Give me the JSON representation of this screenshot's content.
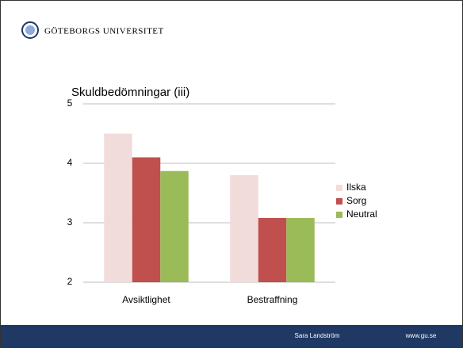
{
  "header": {
    "title": "GÖTEBORGS UNIVERSITET"
  },
  "footer": {
    "author": "Sara Landström",
    "url": "www.gu.se"
  },
  "chart_data": {
    "type": "bar",
    "title": "Skuldbedömningar (iii)",
    "categories": [
      "Avsiktlighet",
      "Bestraffning"
    ],
    "series": [
      {
        "name": "Ilska",
        "color": "#f2dcdb",
        "values": [
          4.5,
          3.8
        ]
      },
      {
        "name": "Sorg",
        "color": "#c0504d",
        "values": [
          4.1,
          3.08
        ]
      },
      {
        "name": "Neutral",
        "color": "#9bbb59",
        "values": [
          3.87,
          3.08
        ]
      }
    ],
    "ylim": [
      2,
      5
    ],
    "yticks": [
      2,
      3,
      4,
      5
    ],
    "grid": true,
    "legend": "right"
  }
}
